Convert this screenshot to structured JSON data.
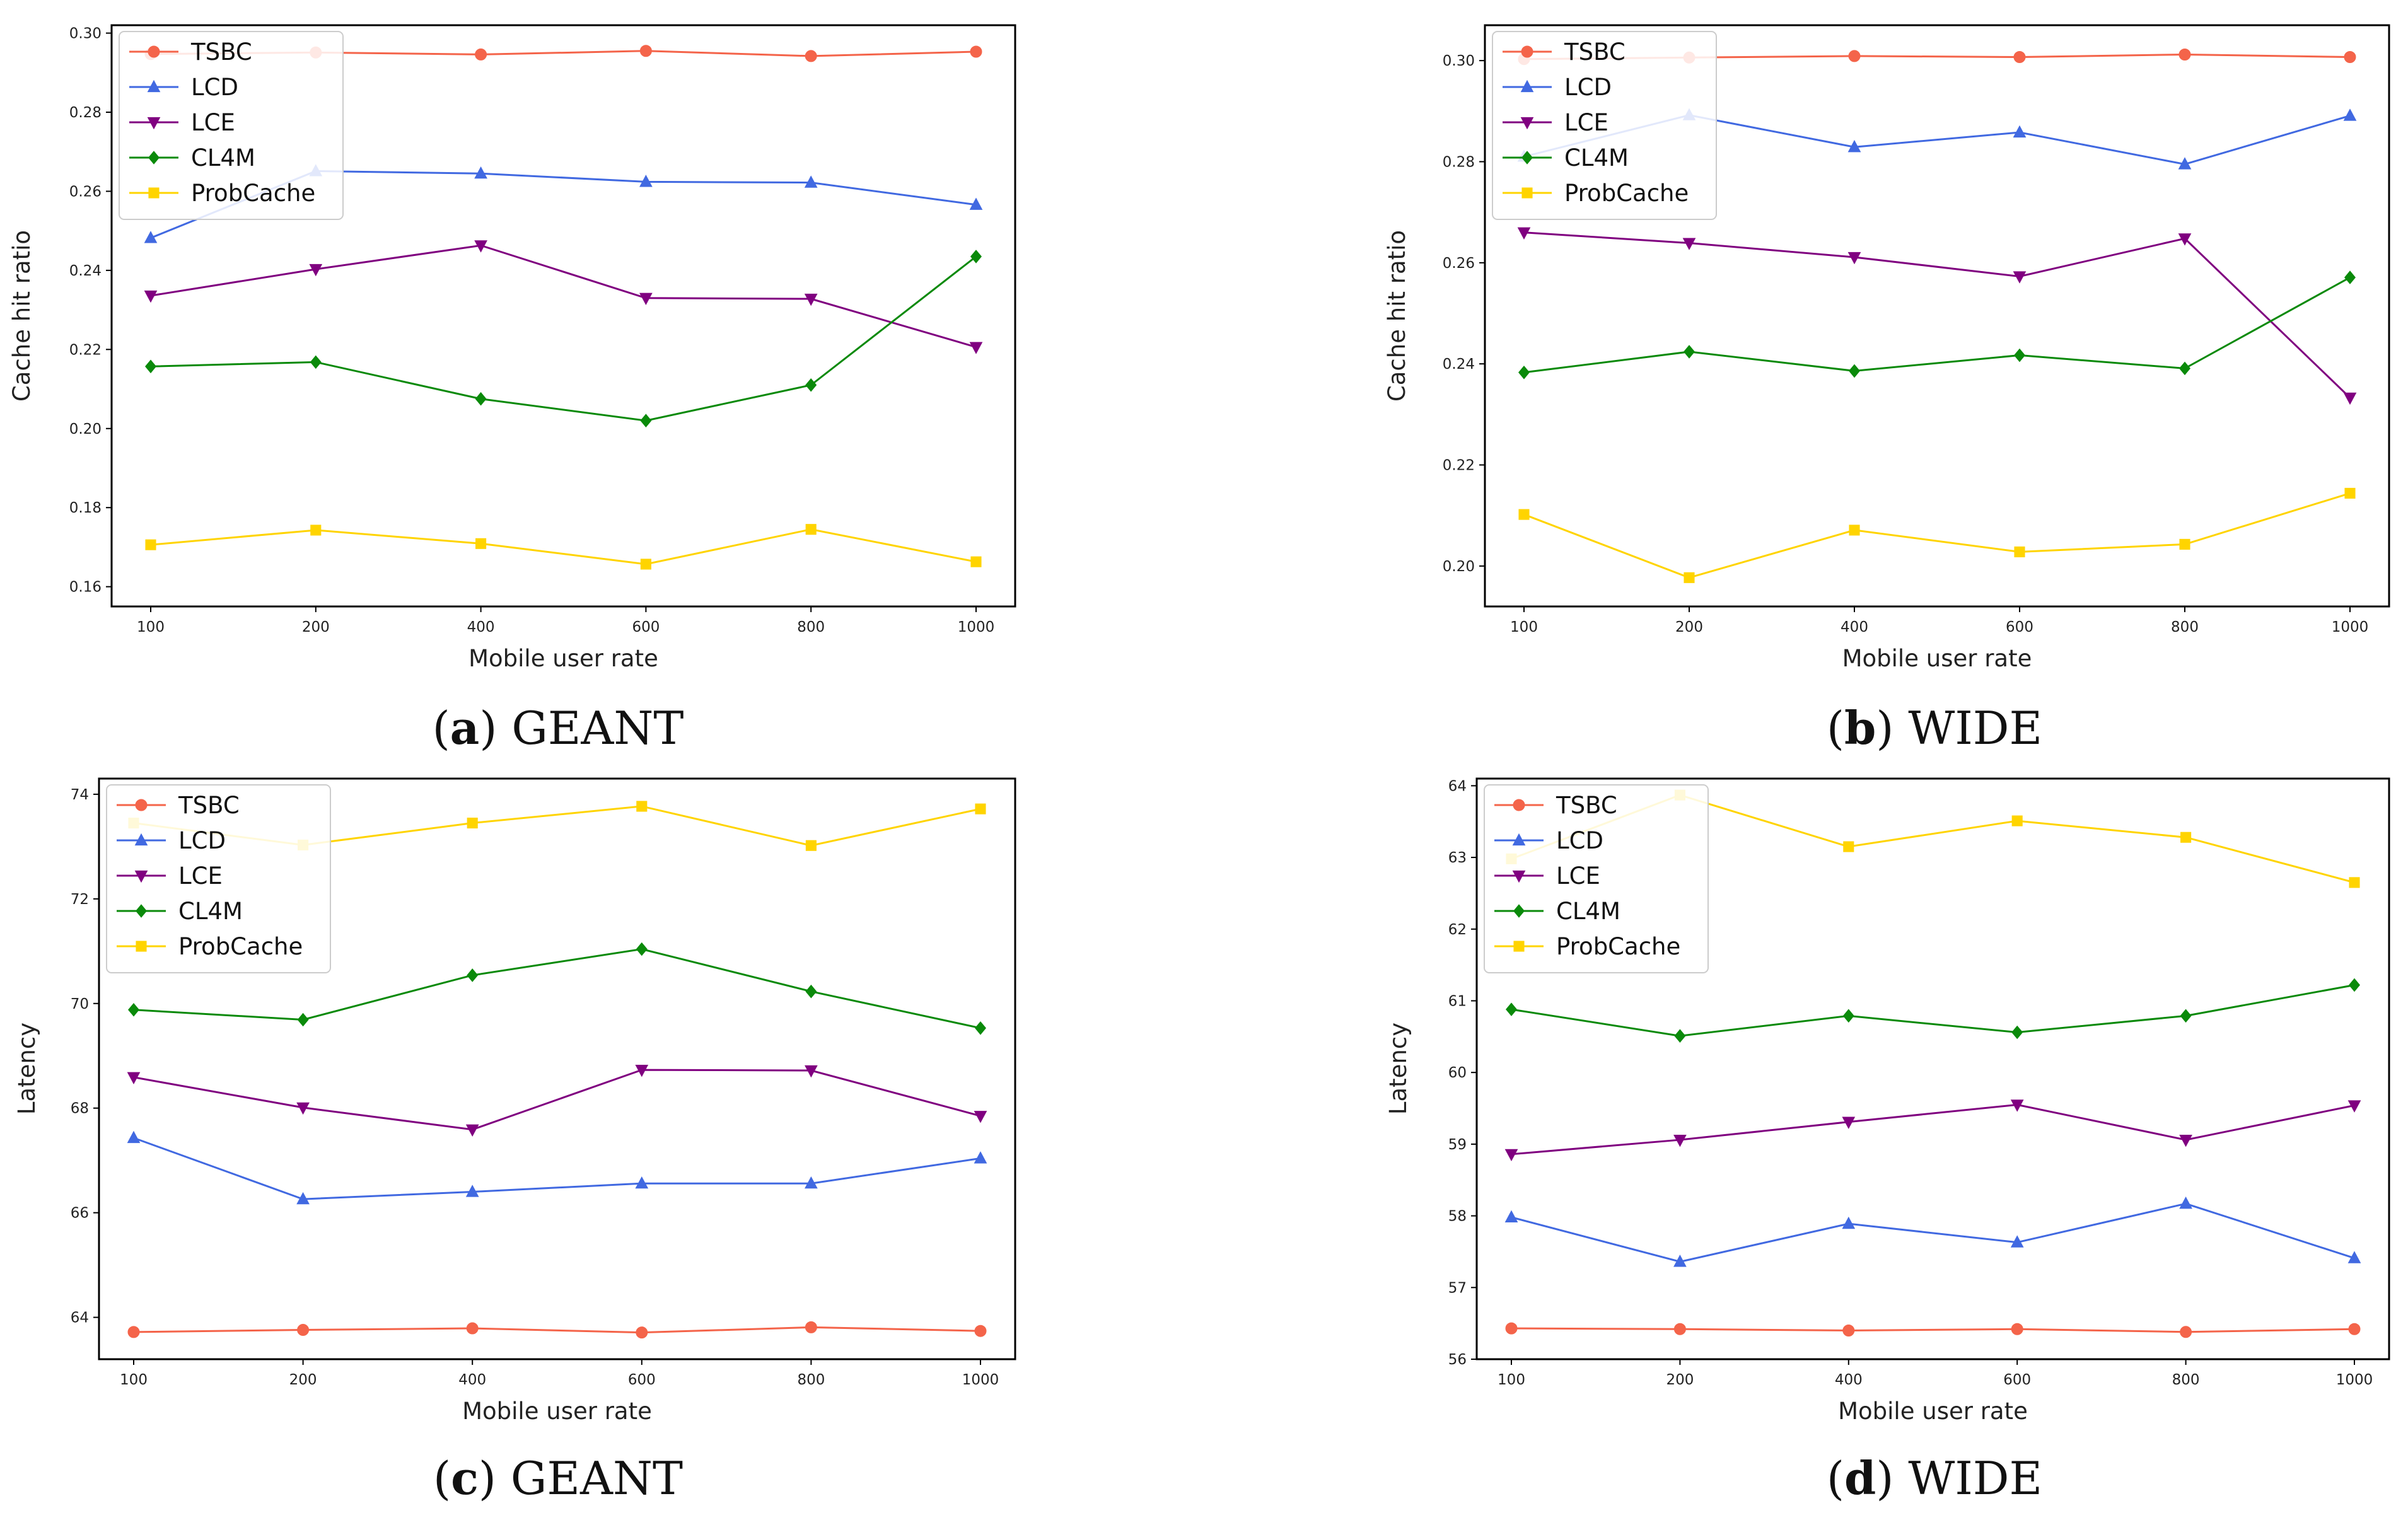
{
  "colors": {
    "TSBC": "#f4644a",
    "LCD": "#4169e1",
    "LCE": "#800080",
    "CL4M": "#0a8a0a",
    "ProbCache": "#ffd400"
  },
  "chart_data": [
    {
      "type": "line",
      "caption_letter": "a",
      "caption_text": "GEANT",
      "xlabel": "Mobile user rate",
      "ylabel": "Cache hit ratio",
      "categories": [
        "100",
        "200",
        "400",
        "600",
        "800",
        "1000"
      ],
      "ylim": [
        0.155,
        0.302
      ],
      "yticks": [
        0.16,
        0.18,
        0.2,
        0.22,
        0.24,
        0.26,
        0.28,
        0.3
      ],
      "ytick_labels": [
        "0.16",
        "0.18",
        "0.20",
        "0.22",
        "0.24",
        "0.26",
        "0.28",
        "0.30"
      ],
      "legend_position": "top-left",
      "series": [
        {
          "name": "TSBC",
          "marker": "circle",
          "values": [
            0.2947,
            0.2951,
            0.2946,
            0.2955,
            0.2942,
            0.2953
          ]
        },
        {
          "name": "LCD",
          "marker": "triangle-up",
          "values": [
            0.2482,
            0.2651,
            0.2645,
            0.2624,
            0.2622,
            0.2566
          ]
        },
        {
          "name": "LCE",
          "marker": "triangle-down",
          "values": [
            0.2336,
            0.2403,
            0.2463,
            0.233,
            0.2328,
            0.2206
          ]
        },
        {
          "name": "CL4M",
          "marker": "diamond",
          "values": [
            0.2157,
            0.2168,
            0.2075,
            0.202,
            0.211,
            0.2435
          ]
        },
        {
          "name": "ProbCache",
          "marker": "square",
          "values": [
            0.1706,
            0.1743,
            0.1709,
            0.1657,
            0.1745,
            0.1663
          ]
        }
      ]
    },
    {
      "type": "line",
      "caption_letter": "b",
      "caption_text": "WIDE",
      "xlabel": "Mobile user rate",
      "ylabel": "Cache hit ratio",
      "categories": [
        "100",
        "200",
        "400",
        "600",
        "800",
        "1000"
      ],
      "ylim": [
        0.192,
        0.307
      ],
      "yticks": [
        0.2,
        0.22,
        0.24,
        0.26,
        0.28,
        0.3
      ],
      "ytick_labels": [
        "0.20",
        "0.22",
        "0.24",
        "0.26",
        "0.28",
        "0.30"
      ],
      "legend_position": "top-left",
      "series": [
        {
          "name": "TSBC",
          "marker": "circle",
          "values": [
            0.3003,
            0.3006,
            0.3009,
            0.3007,
            0.3012,
            0.3007
          ]
        },
        {
          "name": "LCD",
          "marker": "triangle-up",
          "values": [
            0.281,
            0.2892,
            0.2829,
            0.2858,
            0.2795,
            0.2891
          ]
        },
        {
          "name": "LCE",
          "marker": "triangle-down",
          "values": [
            0.266,
            0.2639,
            0.2611,
            0.2573,
            0.2648,
            0.2333
          ]
        },
        {
          "name": "CL4M",
          "marker": "diamond",
          "values": [
            0.2383,
            0.2424,
            0.2386,
            0.2417,
            0.2391,
            0.2571
          ]
        },
        {
          "name": "ProbCache",
          "marker": "square",
          "values": [
            0.2102,
            0.1977,
            0.2071,
            0.2028,
            0.2043,
            0.2144
          ]
        }
      ]
    },
    {
      "type": "line",
      "caption_letter": "c",
      "caption_text": "GEANT",
      "xlabel": "Mobile user rate",
      "ylabel": "Latency",
      "categories": [
        "100",
        "200",
        "400",
        "600",
        "800",
        "1000"
      ],
      "ylim": [
        63.2,
        74.3
      ],
      "yticks": [
        64,
        66,
        68,
        70,
        72,
        74
      ],
      "ytick_labels": [
        "64",
        "66",
        "68",
        "70",
        "72",
        "74"
      ],
      "legend_position": "top-left",
      "series": [
        {
          "name": "TSBC",
          "marker": "circle",
          "values": [
            63.72,
            63.76,
            63.79,
            63.71,
            63.81,
            63.74
          ]
        },
        {
          "name": "LCD",
          "marker": "triangle-up",
          "values": [
            67.43,
            66.26,
            66.4,
            66.56,
            66.56,
            67.04
          ]
        },
        {
          "name": "LCE",
          "marker": "triangle-down",
          "values": [
            68.59,
            68.01,
            67.59,
            68.73,
            68.72,
            67.85
          ]
        },
        {
          "name": "CL4M",
          "marker": "diamond",
          "values": [
            69.88,
            69.69,
            70.54,
            71.04,
            70.23,
            69.53
          ]
        },
        {
          "name": "ProbCache",
          "marker": "square",
          "values": [
            73.45,
            73.03,
            73.45,
            73.77,
            73.02,
            73.72
          ]
        }
      ]
    },
    {
      "type": "line",
      "caption_letter": "d",
      "caption_text": "WIDE",
      "xlabel": "Mobile user rate",
      "ylabel": "Latency",
      "categories": [
        "100",
        "200",
        "400",
        "600",
        "800",
        "1000"
      ],
      "ylim": [
        56.0,
        64.1
      ],
      "yticks": [
        56,
        57,
        58,
        59,
        60,
        61,
        62,
        63,
        64
      ],
      "ytick_labels": [
        "56",
        "57",
        "58",
        "59",
        "60",
        "61",
        "62",
        "63",
        "64"
      ],
      "legend_position": "top-left",
      "series": [
        {
          "name": "TSBC",
          "marker": "circle",
          "values": [
            56.43,
            56.42,
            56.4,
            56.42,
            56.38,
            56.42
          ]
        },
        {
          "name": "LCD",
          "marker": "triangle-up",
          "values": [
            57.98,
            57.36,
            57.89,
            57.63,
            58.17,
            57.41
          ]
        },
        {
          "name": "LCE",
          "marker": "triangle-down",
          "values": [
            58.86,
            59.06,
            59.31,
            59.55,
            59.06,
            59.54
          ]
        },
        {
          "name": "CL4M",
          "marker": "diamond",
          "values": [
            60.88,
            60.51,
            60.79,
            60.56,
            60.79,
            61.22
          ]
        },
        {
          "name": "ProbCache",
          "marker": "square",
          "values": [
            62.98,
            63.87,
            63.15,
            63.51,
            63.28,
            62.65
          ]
        }
      ]
    }
  ]
}
